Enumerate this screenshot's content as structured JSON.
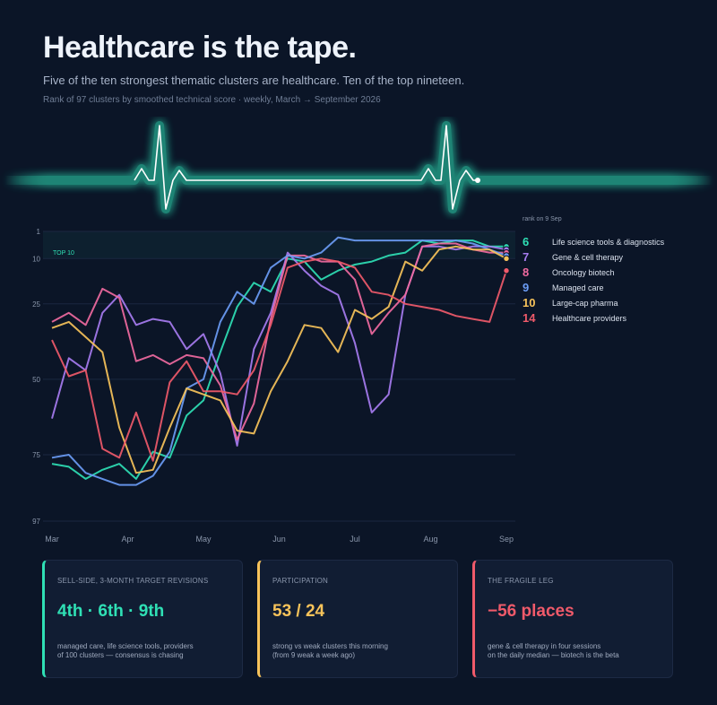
{
  "header": {
    "title": "Healthcare is the tape.",
    "subtitle": "Five of the ten strongest thematic clusters are healthcare. Ten of the top nineteen.",
    "meta": "Rank of 97 clusters by smoothed technical score  ·  weekly, March → September 2026"
  },
  "colors": {
    "background": "#0b1527",
    "teal": "#2fe0b5",
    "purple": "#a77cf0",
    "pink": "#f06aa0",
    "blue": "#6b9cf5",
    "yellow": "#f7c35a",
    "red": "#f05a6a"
  },
  "chart_data": {
    "type": "line",
    "y_axis_label": "",
    "y_inverted": true,
    "ylim": [
      97,
      1
    ],
    "y_ticks": [
      "1",
      "10",
      "25",
      "50",
      "75",
      "97"
    ],
    "x_ticks": [
      "Mar",
      "Apr",
      "May",
      "Jun",
      "Jul",
      "Aug",
      "Sep"
    ],
    "top_band_label": "TOP 10",
    "legend_header": "rank on 9 Sep",
    "x_weeks": [
      0,
      1,
      2,
      3,
      4,
      5,
      6,
      7,
      8,
      9,
      10,
      11,
      12,
      13,
      14,
      15,
      16,
      17,
      18,
      19,
      20,
      21,
      22,
      23,
      24,
      25,
      26,
      27
    ],
    "series": [
      {
        "name": "Life science tools & diagnostics",
        "rank": "6",
        "color": "#2fe0b5",
        "values": [
          78,
          79,
          83,
          80,
          78,
          83,
          74,
          76,
          62,
          57,
          41,
          26,
          18,
          21,
          10,
          11,
          17,
          14,
          12,
          11,
          9,
          8,
          4,
          5,
          4,
          4,
          6,
          6
        ]
      },
      {
        "name": "Gene & cell therapy",
        "rank": "7",
        "color": "#a77cf0",
        "values": [
          63,
          43,
          47,
          28,
          22,
          32,
          30,
          31,
          40,
          35,
          48,
          72,
          40,
          28,
          8,
          14,
          19,
          22,
          38,
          61,
          55,
          22,
          6,
          6,
          7,
          6,
          6,
          7
        ]
      },
      {
        "name": "Oncology biotech",
        "rank": "8",
        "color": "#f06aa0",
        "values": [
          31,
          28,
          32,
          20,
          23,
          44,
          42,
          45,
          42,
          43,
          52,
          70,
          58,
          30,
          9,
          9,
          11,
          11,
          17,
          35,
          28,
          22,
          6,
          5,
          5,
          7,
          8,
          8
        ]
      },
      {
        "name": "Managed care",
        "rank": "9",
        "color": "#6b9cf5",
        "values": [
          76,
          75,
          81,
          83,
          85,
          85,
          82,
          74,
          53,
          50,
          31,
          21,
          25,
          13,
          9,
          10,
          8,
          3,
          4,
          4,
          4,
          4,
          4,
          4,
          4,
          5,
          7,
          9
        ]
      },
      {
        "name": "Large-cap pharma",
        "rank": "10",
        "color": "#f7c35a",
        "values": [
          33,
          31,
          36,
          41,
          66,
          81,
          80,
          66,
          53,
          55,
          57,
          67,
          68,
          54,
          44,
          32,
          33,
          41,
          27,
          30,
          26,
          11,
          14,
          7,
          6,
          7,
          7,
          10
        ]
      },
      {
        "name": "Healthcare providers",
        "rank": "14",
        "color": "#f05a6a",
        "values": [
          37,
          49,
          47,
          73,
          76,
          61,
          77,
          51,
          44,
          54,
          54,
          55,
          47,
          32,
          13,
          11,
          10,
          11,
          13,
          21,
          22,
          25,
          26,
          27,
          29,
          30,
          31,
          14
        ]
      }
    ]
  },
  "cards": [
    {
      "label": "SELL-SIDE, 3-MONTH TARGET REVISIONS",
      "value": "4th · 6th · 9th",
      "note": "managed care, life science tools, providers\nof 100 clusters — consensus is chasing",
      "color": "#2fe0b5"
    },
    {
      "label": "PARTICIPATION",
      "value": "53 / 24",
      "note": "strong vs weak clusters this morning\n(from 9 weak a week ago)",
      "color": "#f7c35a"
    },
    {
      "label": "THE FRAGILE LEG",
      "value": "−56 places",
      "note": "gene & cell therapy in four sessions\non the daily median — biotech is the beta",
      "color": "#f05a6a"
    }
  ]
}
